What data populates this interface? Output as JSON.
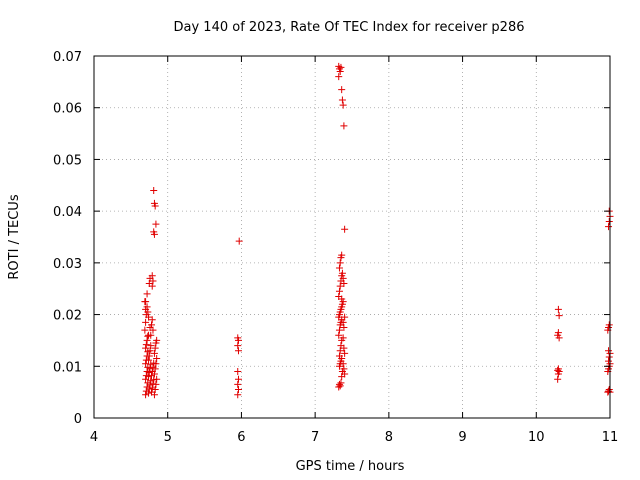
{
  "chart_data": {
    "type": "scatter",
    "title": "Day 140 of 2023, Rate Of TEC Index for receiver p286",
    "xlabel": "GPS time / hours",
    "ylabel": "ROTI / TECUs",
    "xlim": [
      4,
      11
    ],
    "ylim": [
      0,
      0.07
    ],
    "xticks": [
      "4",
      "5",
      "6",
      "7",
      "8",
      "9",
      "10",
      "11"
    ],
    "yticks": [
      "0",
      "0.01",
      "0.02",
      "0.03",
      "0.04",
      "0.05",
      "0.06",
      "0.07"
    ],
    "grid": true,
    "marker": "plus",
    "color": "#e00000",
    "series": [
      {
        "points": [
          [
            4.7,
            0.0045
          ],
          [
            4.71,
            0.0052
          ],
          [
            4.72,
            0.006
          ],
          [
            4.73,
            0.0068
          ],
          [
            4.7,
            0.0075
          ],
          [
            4.71,
            0.0082
          ],
          [
            4.72,
            0.009
          ],
          [
            4.73,
            0.0098
          ],
          [
            4.7,
            0.0105
          ],
          [
            4.71,
            0.0112
          ],
          [
            4.72,
            0.012
          ],
          [
            4.73,
            0.0128
          ],
          [
            4.7,
            0.0135
          ],
          [
            4.71,
            0.0142
          ],
          [
            4.72,
            0.015
          ],
          [
            4.73,
            0.0158
          ],
          [
            4.74,
            0.0048
          ],
          [
            4.75,
            0.0056
          ],
          [
            4.76,
            0.0064
          ],
          [
            4.77,
            0.0072
          ],
          [
            4.74,
            0.008
          ],
          [
            4.75,
            0.0088
          ],
          [
            4.76,
            0.0096
          ],
          [
            4.77,
            0.0104
          ],
          [
            4.74,
            0.0112
          ],
          [
            4.75,
            0.012
          ],
          [
            4.76,
            0.013
          ],
          [
            4.77,
            0.014
          ],
          [
            4.78,
            0.005
          ],
          [
            4.79,
            0.0058
          ],
          [
            4.8,
            0.0066
          ],
          [
            4.81,
            0.0074
          ],
          [
            4.78,
            0.0082
          ],
          [
            4.79,
            0.009
          ],
          [
            4.8,
            0.0098
          ],
          [
            4.81,
            0.0106
          ],
          [
            4.82,
            0.0045
          ],
          [
            4.83,
            0.0055
          ],
          [
            4.84,
            0.0065
          ],
          [
            4.85,
            0.0075
          ],
          [
            4.82,
            0.0085
          ],
          [
            4.83,
            0.0095
          ],
          [
            4.84,
            0.0105
          ],
          [
            4.85,
            0.0115
          ],
          [
            4.82,
            0.0125
          ],
          [
            4.83,
            0.0135
          ],
          [
            4.84,
            0.0145
          ],
          [
            4.85,
            0.015
          ],
          [
            4.69,
            0.017
          ],
          [
            4.7,
            0.0185
          ],
          [
            4.71,
            0.02
          ],
          [
            4.72,
            0.0215
          ],
          [
            4.7,
            0.0225
          ],
          [
            4.72,
            0.024
          ],
          [
            4.73,
            0.0205
          ],
          [
            4.74,
            0.0195
          ],
          [
            4.76,
            0.0175
          ],
          [
            4.77,
            0.016
          ],
          [
            4.78,
            0.018
          ],
          [
            4.79,
            0.019
          ],
          [
            4.8,
            0.017
          ],
          [
            4.74,
            0.016
          ],
          [
            4.75,
            0.026
          ],
          [
            4.76,
            0.027
          ],
          [
            4.79,
            0.0275
          ],
          [
            4.8,
            0.0265
          ],
          [
            4.79,
            0.0255
          ],
          [
            4.7,
            0.021
          ],
          [
            4.69,
            0.0225
          ],
          [
            4.81,
            0.044
          ],
          [
            4.82,
            0.0415
          ],
          [
            4.83,
            0.041
          ],
          [
            4.84,
            0.0375
          ],
          [
            4.81,
            0.036
          ],
          [
            4.82,
            0.0355
          ],
          [
            5.95,
            0.0045
          ],
          [
            5.96,
            0.0055
          ],
          [
            5.95,
            0.0065
          ],
          [
            5.96,
            0.0075
          ],
          [
            5.95,
            0.009
          ],
          [
            5.96,
            0.013
          ],
          [
            5.95,
            0.014
          ],
          [
            5.96,
            0.015
          ],
          [
            5.95,
            0.0155
          ],
          [
            5.97,
            0.0342
          ],
          [
            7.32,
            0.006
          ],
          [
            7.33,
            0.0065
          ],
          [
            7.34,
            0.0062
          ],
          [
            7.35,
            0.0068
          ],
          [
            7.36,
            0.008
          ],
          [
            7.37,
            0.009
          ],
          [
            7.33,
            0.01
          ],
          [
            7.34,
            0.0105
          ],
          [
            7.35,
            0.011
          ],
          [
            7.36,
            0.0115
          ],
          [
            7.33,
            0.012
          ],
          [
            7.34,
            0.013
          ],
          [
            7.35,
            0.014
          ],
          [
            7.36,
            0.015
          ],
          [
            7.32,
            0.016
          ],
          [
            7.33,
            0.017
          ],
          [
            7.34,
            0.018
          ],
          [
            7.35,
            0.0185
          ],
          [
            7.36,
            0.019
          ],
          [
            7.32,
            0.0195
          ],
          [
            7.33,
            0.02
          ],
          [
            7.34,
            0.0205
          ],
          [
            7.35,
            0.021
          ],
          [
            7.36,
            0.0215
          ],
          [
            7.37,
            0.022
          ],
          [
            7.38,
            0.0225
          ],
          [
            7.32,
            0.0235
          ],
          [
            7.33,
            0.0245
          ],
          [
            7.34,
            0.0255
          ],
          [
            7.35,
            0.0265
          ],
          [
            7.36,
            0.0275
          ],
          [
            7.37,
            0.028
          ],
          [
            7.38,
            0.027
          ],
          [
            7.39,
            0.026
          ],
          [
            7.33,
            0.029
          ],
          [
            7.34,
            0.03
          ],
          [
            7.35,
            0.031
          ],
          [
            7.36,
            0.0315
          ],
          [
            7.38,
            0.0185
          ],
          [
            7.39,
            0.0175
          ],
          [
            7.4,
            0.0195
          ],
          [
            7.38,
            0.0155
          ],
          [
            7.39,
            0.0135
          ],
          [
            7.4,
            0.0125
          ],
          [
            7.38,
            0.0105
          ],
          [
            7.39,
            0.0095
          ],
          [
            7.4,
            0.0085
          ],
          [
            7.36,
            0.023
          ],
          [
            7.4,
            0.0365
          ],
          [
            7.32,
            0.068
          ],
          [
            7.33,
            0.0675
          ],
          [
            7.34,
            0.067
          ],
          [
            7.35,
            0.0678
          ],
          [
            7.32,
            0.066
          ],
          [
            7.36,
            0.0635
          ],
          [
            7.37,
            0.0615
          ],
          [
            7.38,
            0.0605
          ],
          [
            7.39,
            0.0565
          ],
          [
            10.29,
            0.0075
          ],
          [
            10.3,
            0.0085
          ],
          [
            10.31,
            0.009
          ],
          [
            10.29,
            0.0092
          ],
          [
            10.3,
            0.0095
          ],
          [
            10.31,
            0.0155
          ],
          [
            10.29,
            0.016
          ],
          [
            10.3,
            0.0165
          ],
          [
            10.31,
            0.0198
          ],
          [
            10.3,
            0.021
          ],
          [
            10.97,
            0.005
          ],
          [
            10.98,
            0.0052
          ],
          [
            10.99,
            0.0055
          ],
          [
            11.0,
            0.005
          ],
          [
            10.97,
            0.009
          ],
          [
            10.98,
            0.0095
          ],
          [
            10.99,
            0.01
          ],
          [
            11.0,
            0.0105
          ],
          [
            10.98,
            0.011
          ],
          [
            10.99,
            0.0118
          ],
          [
            11.0,
            0.0125
          ],
          [
            10.98,
            0.013
          ],
          [
            10.97,
            0.017
          ],
          [
            10.98,
            0.0175
          ],
          [
            10.99,
            0.018
          ],
          [
            10.98,
            0.037
          ],
          [
            10.99,
            0.038
          ],
          [
            11.0,
            0.039
          ],
          [
            10.99,
            0.04
          ]
        ]
      }
    ]
  }
}
